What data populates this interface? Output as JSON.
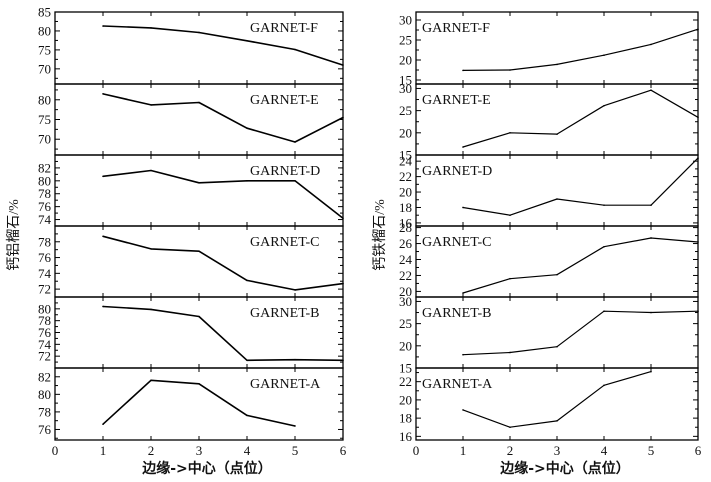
{
  "chart_data": [
    {
      "type": "line",
      "ylabel": "钙铝榴石/%",
      "xlabel": "边缘->中心（点位）",
      "xlim": [
        0,
        6
      ],
      "x_ticks": [
        0,
        1,
        2,
        3,
        4,
        5,
        6
      ],
      "panels": [
        {
          "label": "GARNET-F",
          "ylim": [
            66,
            85
          ],
          "yticks": [
            70,
            75,
            80,
            85
          ],
          "x": [
            1,
            2,
            3,
            4,
            5,
            6
          ],
          "y": [
            81.3,
            80.8,
            79.6,
            77.4,
            75.1,
            71.0
          ]
        },
        {
          "label": "GARNET-E",
          "ylim": [
            66,
            84
          ],
          "yticks": [
            70,
            75,
            80
          ],
          "x": [
            1,
            2,
            3,
            4,
            5,
            6
          ],
          "y": [
            81.5,
            78.7,
            79.3,
            72.8,
            69.3,
            75.5
          ]
        },
        {
          "label": "GARNET-D",
          "ylim": [
            73,
            84
          ],
          "yticks": [
            74,
            76,
            78,
            80,
            82
          ],
          "x": [
            1,
            2,
            3,
            4,
            5,
            6
          ],
          "y": [
            80.7,
            81.6,
            79.7,
            80.0,
            80.0,
            74.2
          ]
        },
        {
          "label": "GARNET-C",
          "ylim": [
            71,
            80
          ],
          "yticks": [
            72,
            74,
            76,
            78
          ],
          "x": [
            1,
            2,
            3,
            4,
            5,
            6
          ],
          "y": [
            78.7,
            77.1,
            76.8,
            73.1,
            71.9,
            72.7
          ]
        },
        {
          "label": "GARNET-B",
          "ylim": [
            70,
            82
          ],
          "yticks": [
            72,
            74,
            76,
            78,
            80
          ],
          "x": [
            1,
            2,
            3,
            4,
            5,
            6
          ],
          "y": [
            80.4,
            79.9,
            78.7,
            71.3,
            71.4,
            71.3
          ]
        },
        {
          "label": "GARNET-A",
          "ylim": [
            74.8,
            83
          ],
          "yticks": [
            76,
            78,
            80,
            82
          ],
          "x": [
            1,
            2,
            3,
            4,
            5
          ],
          "y": [
            76.6,
            81.6,
            81.2,
            77.6,
            76.4
          ]
        }
      ]
    },
    {
      "type": "line",
      "ylabel": "钙铁榴石/%",
      "xlabel": "边缘->中心（点位）",
      "xlim": [
        0,
        6
      ],
      "x_ticks": [
        0,
        1,
        2,
        3,
        4,
        5,
        6
      ],
      "panels": [
        {
          "label": "GARNET-F",
          "ylim": [
            14,
            32
          ],
          "yticks": [
            15,
            20,
            25,
            30
          ],
          "x": [
            1,
            2,
            3,
            4,
            5,
            6
          ],
          "y": [
            17.4,
            17.5,
            18.9,
            21.2,
            23.9,
            27.7
          ]
        },
        {
          "label": "GARNET-E",
          "ylim": [
            15,
            31
          ],
          "yticks": [
            15,
            20,
            25,
            30
          ],
          "x": [
            1,
            2,
            3,
            4,
            5,
            6
          ],
          "y": [
            16.8,
            20.0,
            19.7,
            26.1,
            29.6,
            23.5
          ]
        },
        {
          "label": "GARNET-D",
          "ylim": [
            15.6,
            24.8
          ],
          "yticks": [
            16,
            18,
            20,
            22,
            24
          ],
          "x": [
            1,
            2,
            3,
            4,
            5,
            6
          ],
          "y": [
            18.0,
            17.0,
            19.1,
            18.3,
            18.3,
            24.4
          ]
        },
        {
          "label": "GARNET-C",
          "ylim": [
            19.3,
            28.2
          ],
          "yticks": [
            20,
            22,
            24,
            26,
            28
          ],
          "x": [
            1,
            2,
            3,
            4,
            5,
            6
          ],
          "y": [
            19.8,
            21.6,
            22.1,
            25.6,
            26.7,
            26.2
          ]
        },
        {
          "label": "GARNET-B",
          "ylim": [
            15,
            31
          ],
          "yticks": [
            15,
            20,
            25,
            30
          ],
          "x": [
            1,
            2,
            3,
            4,
            5,
            6
          ],
          "y": [
            18.0,
            18.5,
            19.8,
            27.8,
            27.5,
            27.8
          ]
        },
        {
          "label": "GARNET-A",
          "ylim": [
            15.6,
            23.5
          ],
          "yticks": [
            16,
            18,
            20,
            22
          ],
          "x": [
            1,
            2,
            3,
            4,
            5
          ],
          "y": [
            18.9,
            17.0,
            17.7,
            21.6,
            23.1
          ]
        }
      ]
    }
  ]
}
